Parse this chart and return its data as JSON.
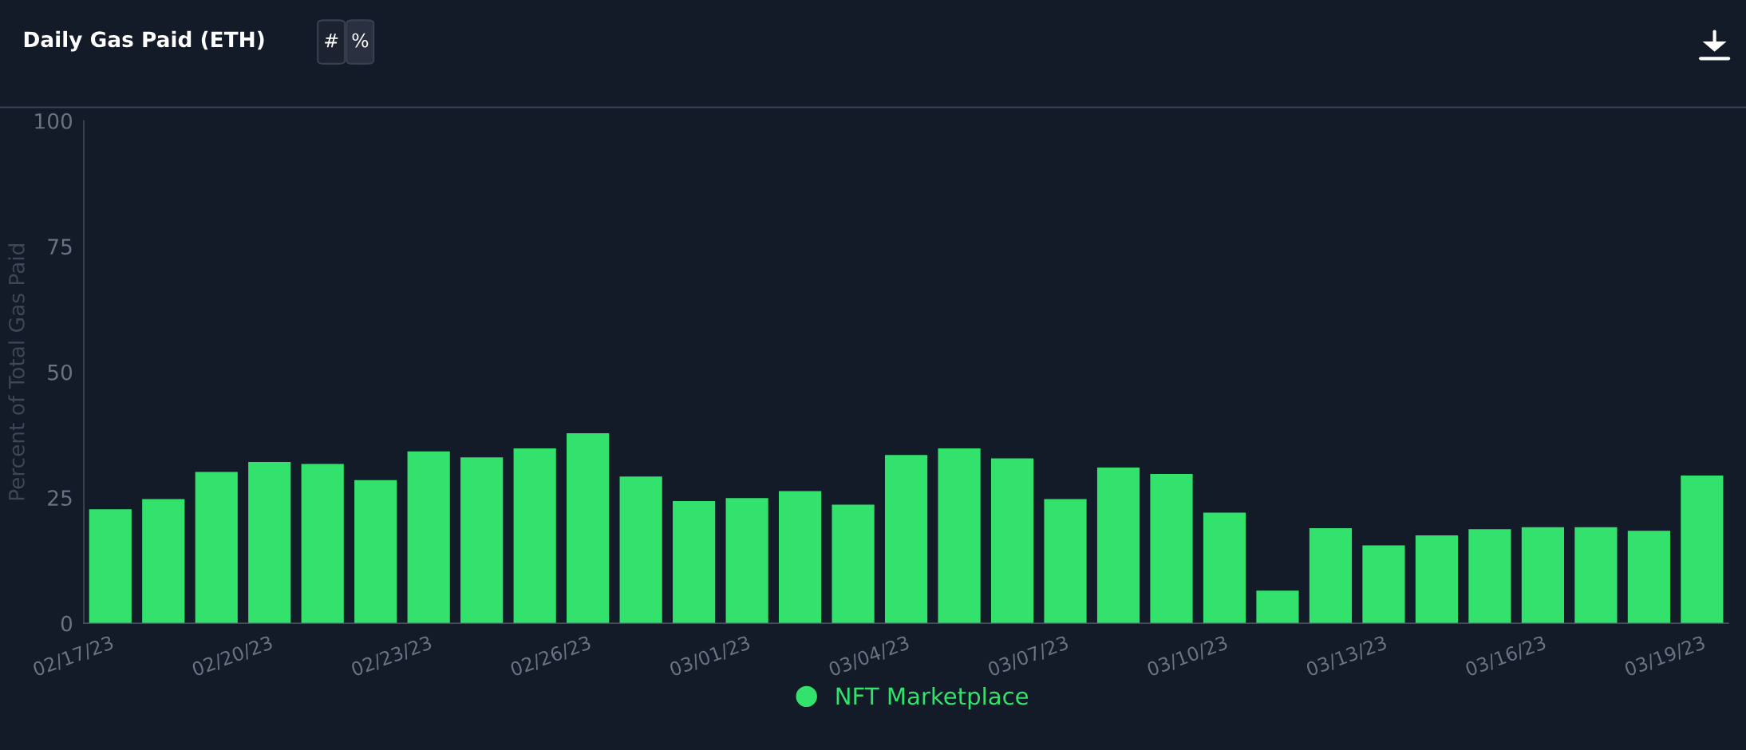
{
  "chart_data": {
    "type": "bar",
    "title": "Daily Gas Paid (ETH)",
    "annotations": [
      "#",
      "%"
    ],
    "ylabel": "Percent of Total Gas Paid",
    "categories": [
      "02/17/23",
      null,
      null,
      "02/20/23",
      null,
      null,
      "02/23/23",
      null,
      null,
      "02/26/23",
      null,
      null,
      "03/01/23",
      null,
      null,
      "03/04/23",
      null,
      null,
      "03/07/23",
      null,
      null,
      "03/10/23",
      null,
      null,
      "03/13/23",
      null,
      null,
      "03/16/23",
      null,
      null,
      "03/19/23"
    ],
    "series": [
      {
        "name": "NFT Marketplace",
        "color": "#33e26c",
        "values": [
          22.7,
          24.7,
          30.1,
          32.1,
          31.7,
          28.5,
          34.2,
          33.0,
          34.8,
          37.8,
          29.2,
          24.3,
          24.9,
          26.3,
          23.6,
          33.5,
          34.8,
          32.8,
          24.7,
          31.0,
          29.7,
          22.0,
          6.5,
          18.9,
          15.5,
          17.5,
          18.7,
          19.1,
          19.1,
          18.4,
          29.4
        ]
      }
    ],
    "ylim": [
      0,
      100
    ],
    "yticks": [
      0,
      25,
      50,
      75,
      100
    ],
    "grid": false,
    "legend": "bottom"
  }
}
